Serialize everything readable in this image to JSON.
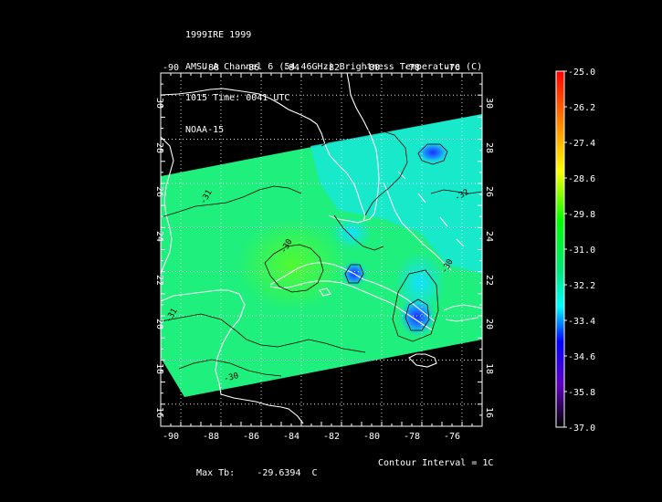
{
  "title": {
    "line1": "1999IRE 1999",
    "line2": "AMSU-A Channel 6 (54.46GHz) Brightness Temperature (C)",
    "line3": "1015 Time: 0041 UTC",
    "line4": "NOAA-15"
  },
  "map": {
    "lon_range": [
      -91,
      -75
    ],
    "lat_range": [
      15,
      31
    ],
    "lon_ticks": [
      "-90",
      "-88",
      "-86",
      "-84",
      "-82",
      "-80",
      "-78",
      "-76"
    ],
    "lat_ticks": [
      "16",
      "18",
      "20",
      "22",
      "24",
      "26",
      "28",
      "30"
    ],
    "contour_labels": [
      "-31",
      "-30",
      "-32",
      "-31",
      "-30",
      "-30"
    ],
    "grid": true
  },
  "colorbar": {
    "labels": [
      "-25.0",
      "-26.2",
      "-27.4",
      "-28.6",
      "-29.8",
      "-31.0",
      "-32.2",
      "-33.4",
      "-34.6",
      "-35.8",
      "-37.0"
    ],
    "colors": [
      "#ff0000",
      "#ff8000",
      "#ffff00",
      "#00ff00",
      "#00ffff",
      "#0000ff",
      "#8000ff",
      "#000000"
    ]
  },
  "footer": {
    "max_tb_label": "Max Tb:",
    "max_tb_value": "-29.6394",
    "max_tb_unit": "C",
    "contour_interval": "Contour Interval = 1C"
  }
}
